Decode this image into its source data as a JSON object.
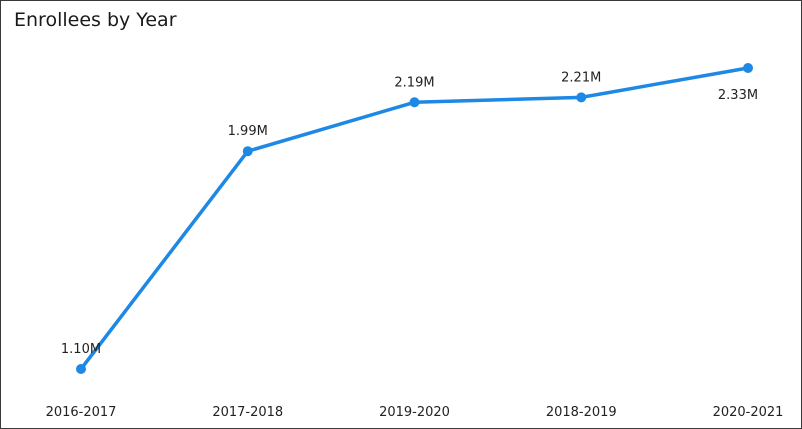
{
  "chart_data": {
    "type": "line",
    "title": "Enrollees by Year",
    "categories": [
      "2016-2017",
      "2017-2018",
      "2019-2020",
      "2018-2019",
      "2020-2021"
    ],
    "values": [
      1.1,
      1.99,
      2.19,
      2.21,
      2.33
    ],
    "data_labels": [
      "1.10M",
      "1.99M",
      "2.19M",
      "2.21M",
      "2.33M"
    ],
    "xlabel": "",
    "ylabel": "",
    "ylim": [
      1.1,
      2.33
    ],
    "grid": false,
    "legend": "none",
    "line_color": "#1E88E5"
  }
}
